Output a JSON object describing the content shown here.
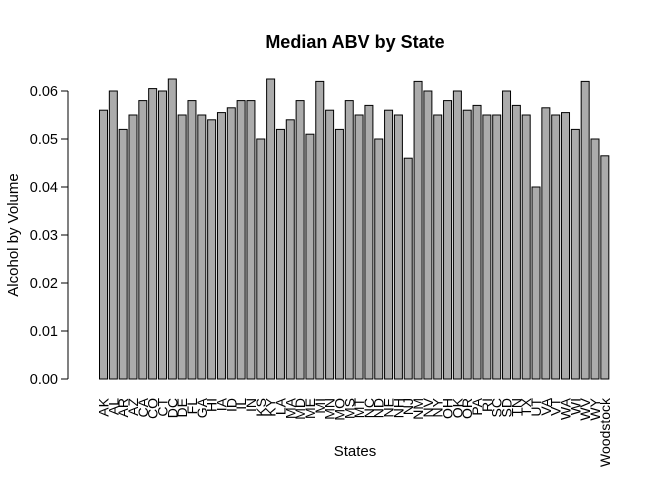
{
  "chart_data": {
    "type": "bar",
    "title": "Median ABV by State",
    "xlabel": "States",
    "ylabel": "Alcohol by Volume",
    "ylim": [
      0,
      0.06
    ],
    "yticks": [
      0.0,
      0.01,
      0.02,
      0.03,
      0.04,
      0.05,
      0.06
    ],
    "ytick_labels": [
      "0.00",
      "0.01",
      "0.02",
      "0.03",
      "0.04",
      "0.05",
      "0.06"
    ],
    "grid": false,
    "legend": "none",
    "bar_color": "#ababab",
    "edge_color": "#000000",
    "categories": [
      "AK",
      "AL",
      "AR",
      "AZ",
      "CA",
      "CO",
      "CT",
      "DC",
      "DE",
      "FL",
      "GA",
      "HI",
      "IA",
      "ID",
      "IL",
      "IN",
      "KS",
      "KY",
      "LA",
      "MA",
      "MD",
      "ME",
      "MI",
      "MN",
      "MO",
      "MS",
      "MT",
      "NC",
      "ND",
      "NE",
      "NH",
      "NJ",
      "NM",
      "NV",
      "NY",
      "OH",
      "OK",
      "OR",
      "PA",
      "RI",
      "SC",
      "SD",
      "TN",
      "TX",
      "UT",
      "VA",
      "VT",
      "WA",
      "WI",
      "WV",
      "WY",
      "Woodstock"
    ],
    "values": [
      0.056,
      0.06,
      0.052,
      0.055,
      0.058,
      0.0605,
      0.06,
      0.0625,
      0.055,
      0.058,
      0.055,
      0.054,
      0.0555,
      0.0565,
      0.058,
      0.058,
      0.05,
      0.0625,
      0.052,
      0.054,
      0.058,
      0.051,
      0.062,
      0.056,
      0.052,
      0.058,
      0.055,
      0.057,
      0.05,
      0.056,
      0.055,
      0.046,
      0.062,
      0.06,
      0.055,
      0.058,
      0.06,
      0.056,
      0.057,
      0.055,
      0.055,
      0.06,
      0.057,
      0.055,
      0.04,
      0.0565,
      0.055,
      0.0555,
      0.052,
      0.062,
      0.05,
      0.0465
    ]
  }
}
